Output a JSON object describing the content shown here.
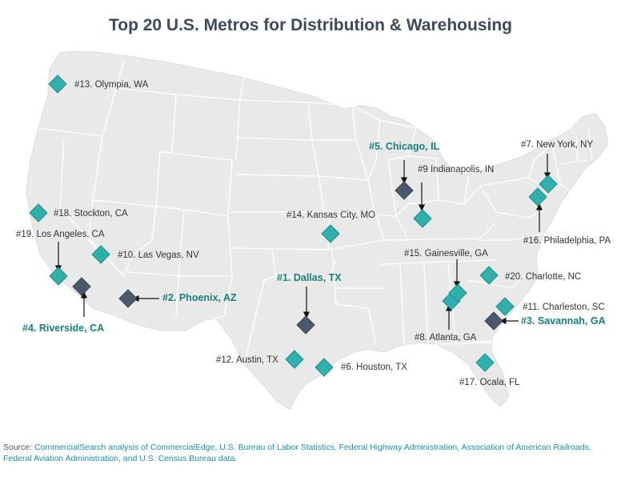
{
  "title": "Top 20 U.S. Metros for Distribution & Warehousing",
  "colors": {
    "land": "#e9e9e9",
    "border": "#ffffff",
    "marker_regular": "#2fb0ad",
    "marker_top5": "#4a5a6c",
    "label_top5": "#17807d",
    "source_link": "#1a8fb8"
  },
  "markers": [
    {
      "rank": 1,
      "label": "#1. Dallas, TX",
      "top5": true
    },
    {
      "rank": 2,
      "label": "#2. Phoenix, AZ",
      "top5": true
    },
    {
      "rank": 3,
      "label": "#3. Savannah, GA",
      "top5": true
    },
    {
      "rank": 4,
      "label": "#4. Riverside, CA",
      "top5": true
    },
    {
      "rank": 5,
      "label": "#5. Chicago, IL",
      "top5": true
    },
    {
      "rank": 6,
      "label": "#6. Houston, TX",
      "top5": false
    },
    {
      "rank": 7,
      "label": "#7. New York, NY",
      "top5": false
    },
    {
      "rank": 8,
      "label": "#8. Atlanta, GA",
      "top5": false
    },
    {
      "rank": 9,
      "label": "#9 Indianapolis, IN",
      "top5": false
    },
    {
      "rank": 10,
      "label": "#10. Las Vegas, NV",
      "top5": false
    },
    {
      "rank": 11,
      "label": "#11. Charleston, SC",
      "top5": false
    },
    {
      "rank": 12,
      "label": "#12. Austin, TX",
      "top5": false
    },
    {
      "rank": 13,
      "label": "#13. Olympia, WA",
      "top5": false
    },
    {
      "rank": 14,
      "label": "#14. Kansas City, MO",
      "top5": false
    },
    {
      "rank": 15,
      "label": "#15. Gainesville, GA",
      "top5": false
    },
    {
      "rank": 16,
      "label": "#16. Philadelphia, PA",
      "top5": false
    },
    {
      "rank": 17,
      "label": "#17. Ocala, FL",
      "top5": false
    },
    {
      "rank": 18,
      "label": "#18. Stockton, CA",
      "top5": false
    },
    {
      "rank": 19,
      "label": "#19. Los Angeles, CA",
      "top5": false
    },
    {
      "rank": 20,
      "label": "#20. Charlotte, NC",
      "top5": false
    }
  ],
  "source": {
    "prefix": "Source:",
    "text": "CommercialSearch analysis of CommercialEdge, U.S. Bureau of Labor Statistics, Federal Highway Administration, Association of American Railroads, Federal Aviation Administration, and U.S. Census Bureau data."
  }
}
